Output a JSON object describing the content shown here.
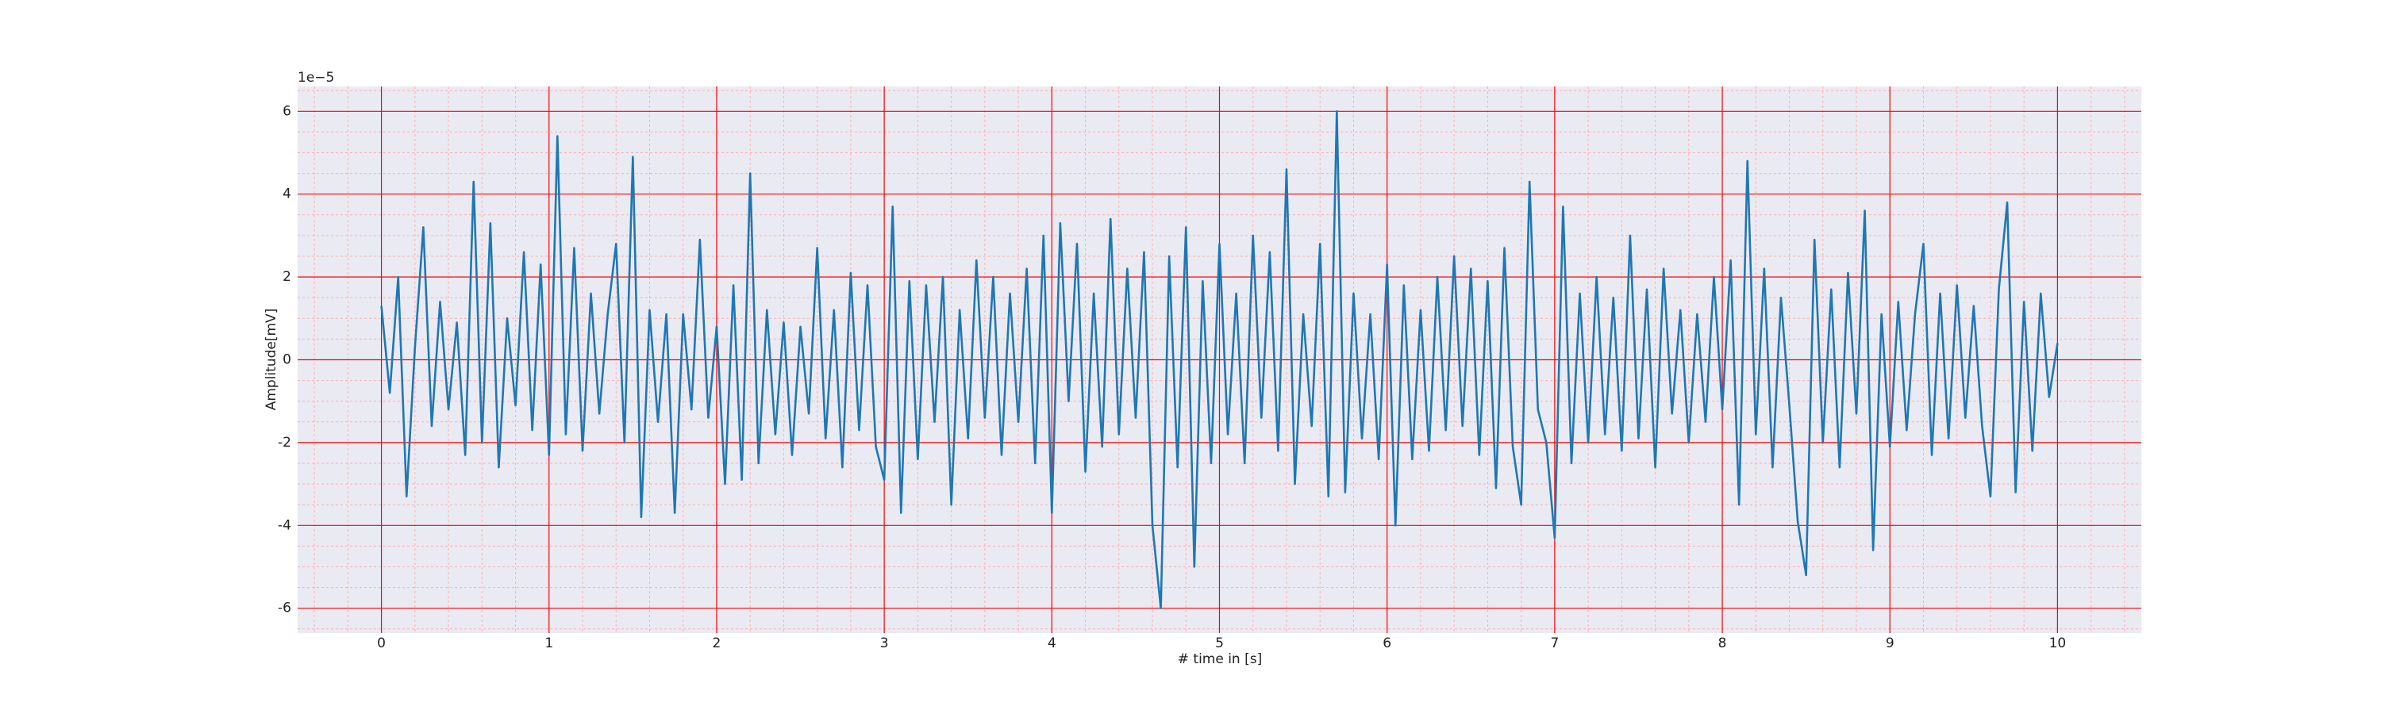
{
  "chart_data": {
    "type": "line",
    "x_label": "# time in [s]",
    "y_label": "Amplitude[mV]",
    "y_offset_label": "1e−5",
    "xlim": [
      -0.5,
      10.5
    ],
    "ylim": [
      -6.6,
      6.6
    ],
    "xticks": [
      0,
      1,
      2,
      3,
      4,
      5,
      6,
      7,
      8,
      9,
      10
    ],
    "yticks": [
      -6,
      -4,
      -2,
      0,
      2,
      4,
      6
    ],
    "xminorticks": [
      -0.4,
      -0.2,
      0.2,
      0.4,
      0.6,
      0.8,
      1.2,
      1.4,
      1.6,
      1.8,
      2.2,
      2.4,
      2.6,
      2.8,
      3.2,
      3.4,
      3.6,
      3.8,
      4.2,
      4.4,
      4.6,
      4.8,
      5.2,
      5.4,
      5.6,
      5.8,
      6.2,
      6.4,
      6.6,
      6.8,
      7.2,
      7.4,
      7.6,
      7.8,
      8.2,
      8.4,
      8.6,
      8.8,
      9.2,
      9.4,
      9.6,
      9.8,
      10.2,
      10.4
    ],
    "yminorticks": [
      -6.5,
      -5.5,
      -5,
      -4.5,
      -3.5,
      -3,
      -2.5,
      -1.5,
      -1,
      -0.5,
      0.5,
      1,
      1.5,
      2.5,
      3,
      3.5,
      4.5,
      5,
      5.5,
      6.5
    ],
    "grid": true,
    "grid_color": "#ff0000",
    "minor_grid_color": "#ffb0b0",
    "plot_background": "#eaeaf2",
    "series": [
      {
        "color": "#1f77b4",
        "x": [
          0,
          0.05,
          0.1,
          0.15,
          0.2,
          0.25,
          0.3,
          0.35,
          0.4,
          0.45,
          0.5,
          0.55,
          0.6,
          0.65,
          0.7,
          0.75,
          0.8,
          0.85,
          0.9,
          0.95,
          1,
          1.05,
          1.1,
          1.15,
          1.2,
          1.25,
          1.3,
          1.35,
          1.4,
          1.45,
          1.5,
          1.55,
          1.6,
          1.65,
          1.7,
          1.75,
          1.8,
          1.85,
          1.9,
          1.95,
          2,
          2.05,
          2.1,
          2.15,
          2.2,
          2.25,
          2.3,
          2.35,
          2.4,
          2.45,
          2.5,
          2.55,
          2.6,
          2.65,
          2.7,
          2.75,
          2.8,
          2.85,
          2.9,
          2.95,
          3,
          3.05,
          3.1,
          3.15,
          3.2,
          3.25,
          3.3,
          3.35,
          3.4,
          3.45,
          3.5,
          3.55,
          3.6,
          3.65,
          3.7,
          3.75,
          3.8,
          3.85,
          3.9,
          3.95,
          4,
          4.05,
          4.1,
          4.15,
          4.2,
          4.25,
          4.3,
          4.35,
          4.4,
          4.45,
          4.5,
          4.55,
          4.6,
          4.65,
          4.7,
          4.75,
          4.8,
          4.85,
          4.9,
          4.95,
          5,
          5.05,
          5.1,
          5.15,
          5.2,
          5.25,
          5.3,
          5.35,
          5.4,
          5.45,
          5.5,
          5.55,
          5.6,
          5.65,
          5.7,
          5.75,
          5.8,
          5.85,
          5.9,
          5.95,
          6,
          6.05,
          6.1,
          6.15,
          6.2,
          6.25,
          6.3,
          6.35,
          6.4,
          6.45,
          6.5,
          6.55,
          6.6,
          6.65,
          6.7,
          6.75,
          6.8,
          6.85,
          6.9,
          6.95,
          7,
          7.05,
          7.1,
          7.15,
          7.2,
          7.25,
          7.3,
          7.35,
          7.4,
          7.45,
          7.5,
          7.55,
          7.6,
          7.65,
          7.7,
          7.75,
          7.8,
          7.85,
          7.9,
          7.95,
          8,
          8.05,
          8.1,
          8.15,
          8.2,
          8.25,
          8.3,
          8.35,
          8.4,
          8.45,
          8.5,
          8.55,
          8.6,
          8.65,
          8.7,
          8.75,
          8.8,
          8.85,
          8.9,
          8.95,
          9,
          9.05,
          9.1,
          9.15,
          9.2,
          9.25,
          9.3,
          9.35,
          9.4,
          9.45,
          9.5,
          9.55,
          9.6,
          9.65,
          9.7,
          9.75,
          9.8,
          9.85,
          9.9,
          9.95,
          10
        ],
        "values": [
          1.3,
          -0.8,
          2.0,
          -3.3,
          0.3,
          3.2,
          -1.6,
          1.4,
          -1.2,
          0.9,
          -2.3,
          4.3,
          -2.0,
          3.3,
          -2.6,
          1.0,
          -1.1,
          2.6,
          -1.7,
          2.3,
          -2.3,
          5.4,
          -1.8,
          2.7,
          -2.2,
          1.6,
          -1.3,
          1.1,
          2.8,
          -2.0,
          4.9,
          -3.8,
          1.2,
          -1.5,
          1.1,
          -3.7,
          1.1,
          -1.2,
          2.9,
          -1.4,
          0.8,
          -3.0,
          1.8,
          -2.9,
          4.5,
          -2.5,
          1.2,
          -1.8,
          0.9,
          -2.3,
          0.8,
          -1.3,
          2.7,
          -1.9,
          1.2,
          -2.6,
          2.1,
          -1.7,
          1.8,
          -2.1,
          -2.9,
          3.7,
          -3.7,
          1.9,
          -2.4,
          1.8,
          -1.5,
          2.0,
          -3.5,
          1.2,
          -1.9,
          2.4,
          -1.4,
          2.0,
          -2.3,
          1.6,
          -1.5,
          2.2,
          -2.5,
          3.0,
          -3.7,
          3.3,
          -1.0,
          2.8,
          -2.7,
          1.6,
          -2.1,
          3.4,
          -1.8,
          2.2,
          -1.4,
          2.6,
          -4.0,
          -6.0,
          2.5,
          -2.6,
          3.2,
          -5.0,
          1.9,
          -2.5,
          2.8,
          -1.8,
          1.6,
          -2.5,
          3.0,
          -1.4,
          2.6,
          -2.2,
          4.6,
          -3.0,
          1.1,
          -1.6,
          2.8,
          -3.3,
          6.0,
          -3.2,
          1.6,
          -1.9,
          1.1,
          -2.4,
          2.3,
          -4.0,
          1.8,
          -2.4,
          1.2,
          -2.2,
          2.0,
          -1.7,
          2.5,
          -1.6,
          2.2,
          -2.3,
          1.9,
          -3.1,
          2.7,
          -2.1,
          -3.5,
          4.3,
          -1.2,
          -2.0,
          -4.3,
          3.7,
          -2.5,
          1.6,
          -2.0,
          2.0,
          -1.8,
          1.5,
          -2.2,
          3.0,
          -1.9,
          1.7,
          -2.6,
          2.2,
          -1.3,
          1.2,
          -2.0,
          1.1,
          -1.5,
          2.0,
          -1.2,
          2.4,
          -3.5,
          4.8,
          -1.8,
          2.2,
          -2.6,
          1.5,
          -1.1,
          -3.9,
          -5.2,
          2.9,
          -2.0,
          1.7,
          -2.6,
          2.1,
          -1.3,
          3.6,
          -4.6,
          1.1,
          -2.1,
          1.4,
          -1.7,
          1.1,
          2.8,
          -2.3,
          1.6,
          -1.9,
          1.8,
          -1.4,
          1.3,
          -1.6,
          -3.3,
          1.7,
          3.8,
          -3.2,
          1.4,
          -2.2,
          1.6,
          -0.9,
          0.4
        ]
      }
    ]
  }
}
